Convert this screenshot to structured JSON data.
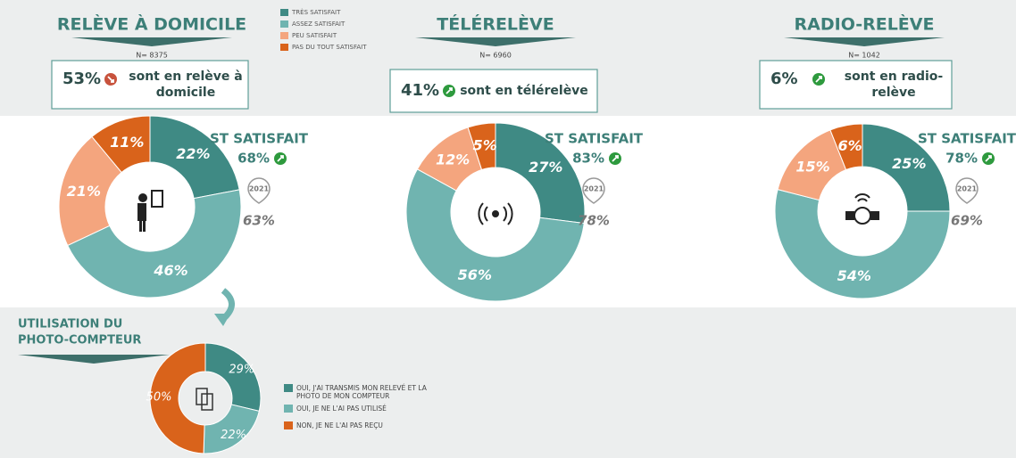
{
  "legend": {
    "entries": [
      {
        "name": "TRÈS SATISFAIT",
        "color": "#3f8a84"
      },
      {
        "name": "ASSEZ SATISFAIT",
        "color": "#70b4b0"
      },
      {
        "name": "PEU SATISFAIT",
        "color": "#f4a57e"
      },
      {
        "name": "PAS DU TOUT SATISFAIT",
        "color": "#d9631b"
      }
    ]
  },
  "chart_data": [
    {
      "type": "donut",
      "title": "RELÈVE À DOMICILE",
      "subtitle": "N= 8375",
      "highlight": {
        "value": "53%",
        "text": [
          "sont en relève à",
          "domicile"
        ],
        "trend": "down"
      },
      "satisfaction": {
        "label": "ST SATISFAIT",
        "value": "68%",
        "trend": "up",
        "year": "2021",
        "previous": "63%"
      },
      "values": [
        22,
        46,
        21,
        11
      ],
      "value_labels": [
        "22%",
        "46%",
        "21%",
        "11%"
      ],
      "colors": [
        "#3f8a84",
        "#70b4b0",
        "#f4a57e",
        "#d9631b"
      ]
    },
    {
      "type": "donut",
      "title": "TÉLÉRELÈVE",
      "subtitle": "N= 6960",
      "highlight": {
        "value": "41%",
        "text": [
          "sont en télérelève"
        ],
        "trend": "up"
      },
      "satisfaction": {
        "label": "ST SATISFAIT",
        "value": "83%",
        "trend": "up",
        "year": "2021",
        "previous": "78%"
      },
      "values": [
        27,
        56,
        12,
        5
      ],
      "value_labels": [
        "27%",
        "56%",
        "12%",
        "5%"
      ],
      "colors": [
        "#3f8a84",
        "#70b4b0",
        "#f4a57e",
        "#d9631b"
      ]
    },
    {
      "type": "donut",
      "title": "RADIO-RELÈVE",
      "subtitle": "N= 1042",
      "highlight": {
        "value": "6%",
        "text": [
          "sont en radio-",
          "relève"
        ],
        "trend": "up"
      },
      "satisfaction": {
        "label": "ST SATISFAIT",
        "value": "78%",
        "trend": "up",
        "year": "2021",
        "previous": "69%"
      },
      "values": [
        25,
        54,
        15,
        6
      ],
      "value_labels": [
        "25%",
        "54%",
        "15%",
        "6%"
      ],
      "colors": [
        "#3f8a84",
        "#70b4b0",
        "#f4a57e",
        "#d9631b"
      ]
    },
    {
      "type": "donut",
      "title": [
        "UTILISATION DU",
        "PHOTO-COMPTEUR"
      ],
      "categories": [
        "OUI, J'AI TRANSMIS MON RELEVÉ ET LA PHOTO DE MON COMPTEUR",
        "OUI, JE NE L'AI PAS UTILISÉ",
        "NON, JE NE L'AI PAS REÇU"
      ],
      "values": [
        29,
        22,
        50
      ],
      "value_labels": [
        "29%",
        "22%",
        "50%"
      ],
      "colors": [
        "#3f8a84",
        "#70b4b0",
        "#d9631b"
      ]
    }
  ]
}
